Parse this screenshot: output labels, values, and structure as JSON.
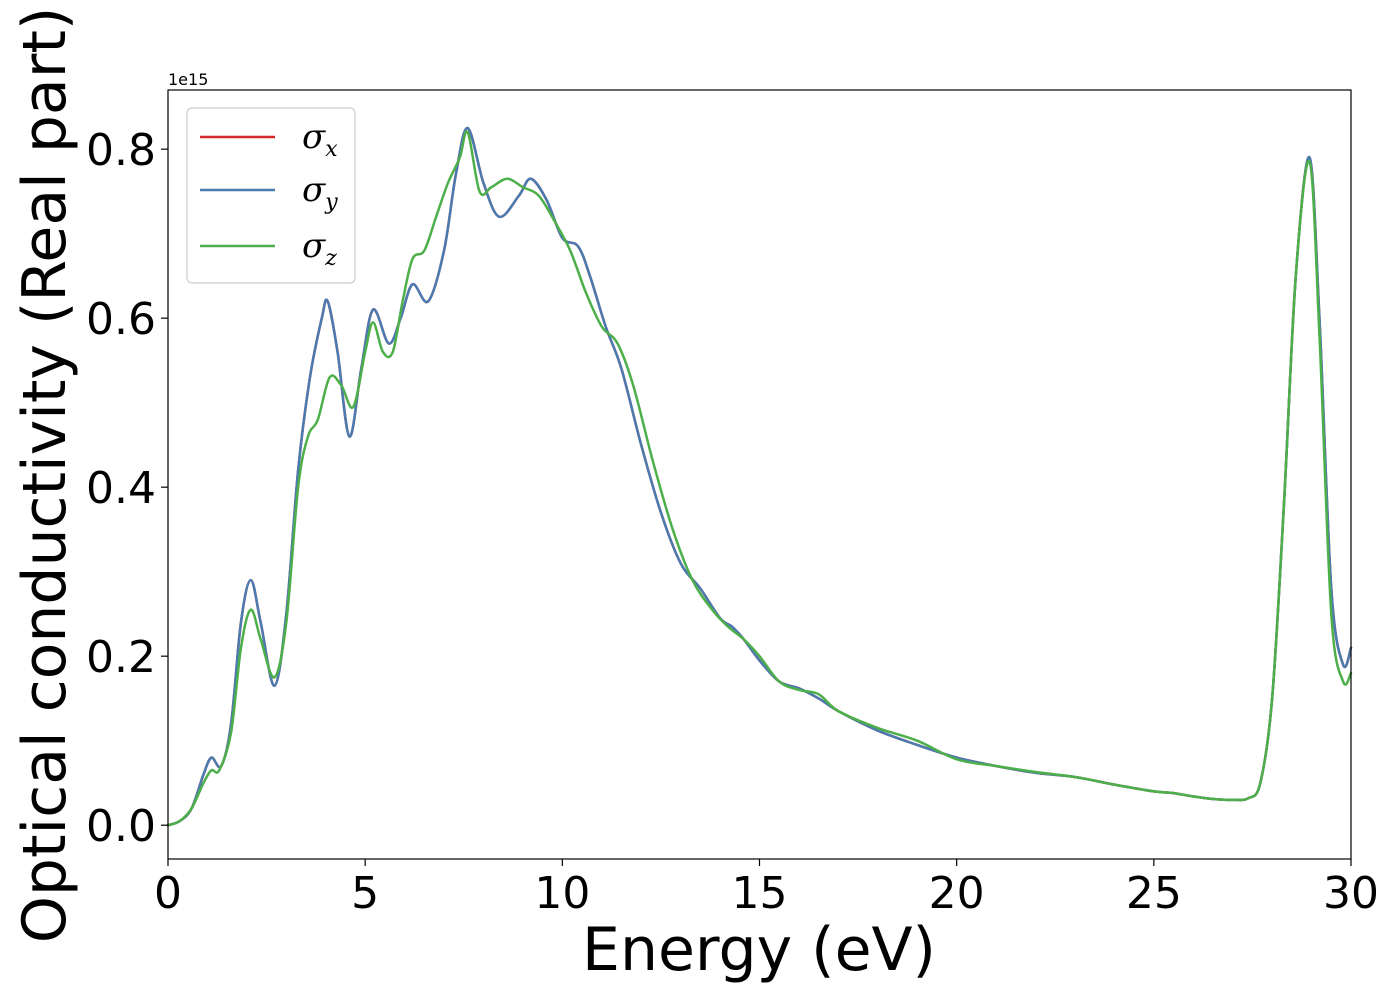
{
  "chart_data": {
    "type": "line",
    "title": "",
    "xlabel": "Energy (eV)",
    "ylabel": "Optical conductivity (Real part)",
    "y_offset_label": "1e15",
    "xlim": [
      0,
      30
    ],
    "ylim": [
      -0.04,
      0.87
    ],
    "xticks": [
      0,
      5,
      10,
      15,
      20,
      25,
      30
    ],
    "xtick_labels": [
      "0",
      "5",
      "10",
      "15",
      "20",
      "25",
      "30"
    ],
    "yticks": [
      0.0,
      0.2,
      0.4,
      0.6,
      0.8
    ],
    "ytick_labels": [
      "0.0",
      "0.2",
      "0.4",
      "0.6",
      "0.8"
    ],
    "grid": false,
    "legend_position": "top-left",
    "colors": {
      "sigma_x": "#d62728",
      "sigma_y": "#4a7bb0",
      "sigma_z": "#4daf4a",
      "axes": "#000000",
      "legend_border": "#cccccc"
    },
    "series": [
      {
        "name": "σx",
        "legend_base": "σ",
        "legend_sub": "x",
        "color": "#d62728",
        "x": [
          0,
          0.3,
          0.6,
          0.9,
          1.1,
          1.35,
          1.6,
          1.85,
          2.1,
          2.35,
          2.7,
          3.0,
          3.3,
          3.6,
          3.9,
          4.05,
          4.3,
          4.6,
          4.9,
          5.2,
          5.6,
          5.9,
          6.2,
          6.6,
          7.0,
          7.3,
          7.6,
          8.0,
          8.4,
          8.9,
          9.2,
          9.6,
          10.0,
          10.4,
          10.7,
          11.1,
          11.5,
          12.0,
          12.5,
          13.0,
          13.5,
          14.0,
          14.3,
          14.6,
          15.0,
          15.5,
          16.0,
          16.5,
          17.0,
          18.0,
          19.0,
          20.0,
          21.0,
          22.0,
          23.0,
          24.0,
          25.0,
          25.5,
          26.0,
          26.5,
          27.0,
          27.4,
          27.7,
          28.0,
          28.3,
          28.6,
          28.95,
          29.2,
          29.5,
          29.8,
          30.0
        ],
        "values": [
          0.0,
          0.005,
          0.02,
          0.06,
          0.08,
          0.07,
          0.12,
          0.24,
          0.29,
          0.24,
          0.165,
          0.25,
          0.42,
          0.53,
          0.6,
          0.62,
          0.56,
          0.46,
          0.54,
          0.61,
          0.57,
          0.6,
          0.64,
          0.62,
          0.68,
          0.77,
          0.825,
          0.76,
          0.72,
          0.745,
          0.765,
          0.74,
          0.695,
          0.685,
          0.65,
          0.59,
          0.54,
          0.45,
          0.37,
          0.31,
          0.28,
          0.245,
          0.235,
          0.22,
          0.195,
          0.17,
          0.162,
          0.15,
          0.135,
          0.112,
          0.095,
          0.08,
          0.07,
          0.062,
          0.057,
          0.048,
          0.04,
          0.038,
          0.034,
          0.031,
          0.03,
          0.032,
          0.05,
          0.15,
          0.38,
          0.65,
          0.79,
          0.6,
          0.28,
          0.19,
          0.21
        ]
      },
      {
        "name": "σy",
        "legend_base": "σ",
        "legend_sub": "y",
        "color": "#4a7bb0",
        "x": [
          0,
          0.3,
          0.6,
          0.9,
          1.1,
          1.35,
          1.6,
          1.85,
          2.1,
          2.35,
          2.7,
          3.0,
          3.3,
          3.6,
          3.9,
          4.05,
          4.3,
          4.6,
          4.9,
          5.2,
          5.6,
          5.9,
          6.2,
          6.6,
          7.0,
          7.3,
          7.6,
          8.0,
          8.4,
          8.9,
          9.2,
          9.6,
          10.0,
          10.4,
          10.7,
          11.1,
          11.5,
          12.0,
          12.5,
          13.0,
          13.5,
          14.0,
          14.3,
          14.6,
          15.0,
          15.5,
          16.0,
          16.5,
          17.0,
          18.0,
          19.0,
          20.0,
          21.0,
          22.0,
          23.0,
          24.0,
          25.0,
          25.5,
          26.0,
          26.5,
          27.0,
          27.4,
          27.7,
          28.0,
          28.3,
          28.6,
          28.95,
          29.2,
          29.5,
          29.8,
          30.0
        ],
        "values": [
          0.0,
          0.005,
          0.02,
          0.06,
          0.08,
          0.07,
          0.12,
          0.24,
          0.29,
          0.24,
          0.165,
          0.25,
          0.42,
          0.53,
          0.6,
          0.62,
          0.56,
          0.46,
          0.54,
          0.61,
          0.57,
          0.6,
          0.64,
          0.62,
          0.68,
          0.77,
          0.825,
          0.76,
          0.72,
          0.745,
          0.765,
          0.74,
          0.695,
          0.685,
          0.65,
          0.59,
          0.54,
          0.45,
          0.37,
          0.31,
          0.28,
          0.245,
          0.235,
          0.22,
          0.195,
          0.17,
          0.162,
          0.15,
          0.135,
          0.112,
          0.095,
          0.08,
          0.07,
          0.062,
          0.057,
          0.048,
          0.04,
          0.038,
          0.034,
          0.031,
          0.03,
          0.032,
          0.05,
          0.15,
          0.38,
          0.65,
          0.79,
          0.6,
          0.28,
          0.19,
          0.21
        ]
      },
      {
        "name": "σz",
        "legend_base": "σ",
        "legend_sub": "z",
        "color": "#4daf4a",
        "x": [
          0,
          0.3,
          0.6,
          0.9,
          1.1,
          1.3,
          1.6,
          1.85,
          2.1,
          2.35,
          2.7,
          3.0,
          3.3,
          3.55,
          3.8,
          4.1,
          4.4,
          4.7,
          5.0,
          5.2,
          5.45,
          5.7,
          5.95,
          6.2,
          6.5,
          6.8,
          7.1,
          7.4,
          7.6,
          7.9,
          8.2,
          8.6,
          9.0,
          9.4,
          9.8,
          10.2,
          10.6,
          11.0,
          11.4,
          11.8,
          12.3,
          12.8,
          13.3,
          13.8,
          14.2,
          14.6,
          15.0,
          15.5,
          16.0,
          16.5,
          17.0,
          18.0,
          19.0,
          20.0,
          21.0,
          22.0,
          23.0,
          24.0,
          25.0,
          25.5,
          26.0,
          26.5,
          27.0,
          27.4,
          27.7,
          28.0,
          28.3,
          28.6,
          28.95,
          29.2,
          29.5,
          29.8,
          30.0
        ],
        "values": [
          0.0,
          0.005,
          0.02,
          0.05,
          0.065,
          0.065,
          0.11,
          0.21,
          0.255,
          0.22,
          0.175,
          0.24,
          0.4,
          0.46,
          0.48,
          0.53,
          0.52,
          0.495,
          0.56,
          0.595,
          0.56,
          0.56,
          0.62,
          0.67,
          0.68,
          0.72,
          0.76,
          0.79,
          0.82,
          0.75,
          0.755,
          0.765,
          0.755,
          0.745,
          0.715,
          0.68,
          0.63,
          0.59,
          0.57,
          0.52,
          0.43,
          0.35,
          0.29,
          0.255,
          0.235,
          0.22,
          0.2,
          0.17,
          0.16,
          0.155,
          0.135,
          0.115,
          0.1,
          0.078,
          0.07,
          0.063,
          0.057,
          0.048,
          0.04,
          0.038,
          0.034,
          0.031,
          0.03,
          0.032,
          0.05,
          0.15,
          0.38,
          0.65,
          0.785,
          0.58,
          0.25,
          0.17,
          0.18
        ]
      }
    ]
  }
}
